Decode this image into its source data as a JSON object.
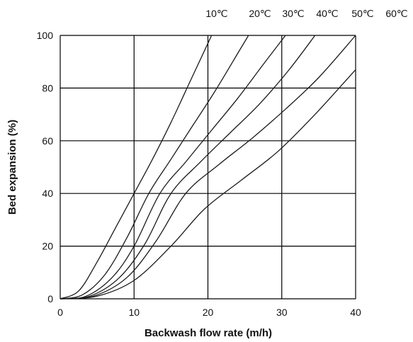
{
  "chart_data": {
    "type": "line",
    "xlabel": "Backwash flow rate (m/h)",
    "ylabel": "Bed expansion (%)",
    "xlim": [
      0,
      40
    ],
    "ylim": [
      0,
      100
    ],
    "x_ticks": [
      0,
      10,
      20,
      30,
      40
    ],
    "y_ticks": [
      0,
      20,
      40,
      60,
      80,
      100
    ],
    "grid": true,
    "series": [
      {
        "name": "10℃",
        "x": [
          0,
          2.5,
          5,
          7.5,
          10,
          12.5,
          15,
          17.5,
          20,
          20.5
        ],
        "y": [
          0,
          3,
          14,
          27,
          40,
          53,
          67,
          82,
          97,
          100
        ]
      },
      {
        "name": "20℃",
        "x": [
          0,
          3,
          6,
          9,
          12,
          15,
          18,
          21,
          24,
          25.5
        ],
        "y": [
          0,
          1.5,
          9,
          23,
          40,
          53,
          66,
          79,
          93,
          100
        ]
      },
      {
        "name": "30℃",
        "x": [
          0,
          3.5,
          7,
          10,
          13.5,
          17,
          20.5,
          24,
          27.5,
          30.5
        ],
        "y": [
          0,
          1,
          8,
          20,
          40,
          52,
          64,
          76,
          89,
          100
        ]
      },
      {
        "name": "40℃",
        "x": [
          0,
          4,
          8,
          11.5,
          15,
          19,
          23,
          27,
          31,
          34.5
        ],
        "y": [
          0,
          1,
          8,
          21,
          40,
          52,
          63,
          74,
          87,
          100
        ]
      },
      {
        "name": "50℃",
        "x": [
          0,
          4.5,
          9,
          13,
          17,
          21.5,
          26,
          30.5,
          35,
          40
        ],
        "y": [
          0,
          1,
          8,
          22,
          40,
          51,
          61,
          72,
          84,
          100
        ]
      },
      {
        "name": "60℃",
        "x": [
          0,
          5,
          10,
          15,
          19.5,
          24.5,
          29.5,
          34.5,
          40
        ],
        "y": [
          0,
          1,
          7,
          20,
          34,
          45,
          56,
          70,
          87
        ]
      }
    ]
  }
}
